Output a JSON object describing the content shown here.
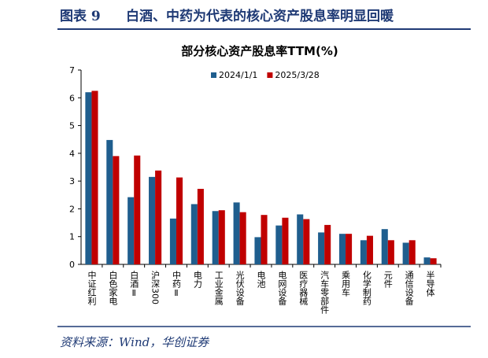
{
  "header": {
    "label": "图表 9",
    "title": "白酒、中药为代表的核心资产股息率明显回暖"
  },
  "source": "资料来源：Wind，华创证券",
  "chart_data": {
    "type": "bar",
    "title": "部分核心资产股息率TTM(%)",
    "categories": [
      "中证红利",
      "白色家电",
      "白酒Ⅱ",
      "沪深300",
      "中药Ⅱ",
      "电力",
      "工业金属",
      "光伏设备",
      "电池",
      "电网设备",
      "医疗器械",
      "汽车零部件",
      "乘用车",
      "化学制药",
      "元件",
      "通信设备",
      "半导体"
    ],
    "series": [
      {
        "name": "2024/1/1",
        "color": "#1f5e8e",
        "values": [
          6.2,
          4.48,
          2.42,
          3.15,
          1.65,
          2.17,
          1.92,
          2.23,
          0.98,
          1.4,
          1.8,
          1.15,
          1.1,
          0.87,
          1.27,
          0.78,
          0.25
        ]
      },
      {
        "name": "2025/3/28",
        "color": "#c00000",
        "values": [
          6.25,
          3.9,
          3.92,
          3.38,
          3.13,
          2.72,
          1.95,
          1.88,
          1.78,
          1.68,
          1.63,
          1.42,
          1.1,
          1.03,
          0.87,
          0.87,
          0.22
        ]
      }
    ],
    "ylim": [
      0,
      7
    ],
    "yticks": [
      0,
      1,
      2,
      3,
      4,
      5,
      6,
      7
    ],
    "legend": "top"
  }
}
